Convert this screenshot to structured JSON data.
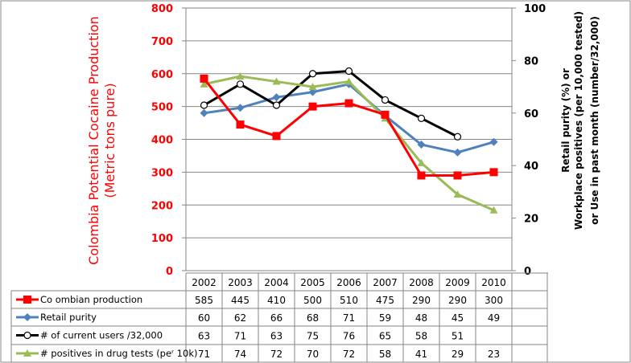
{
  "chart_data": {
    "type": "line",
    "categories": [
      "2002",
      "2003",
      "2004",
      "2005",
      "2006",
      "2007",
      "2008",
      "2009",
      "2010"
    ],
    "left_axis": {
      "title_line1": "Colombia Potential Cocaine Production",
      "title_line2": "(Metric tons pure)",
      "range": [
        0,
        800
      ],
      "ticks": [
        "0",
        "100",
        "200",
        "300",
        "400",
        "500",
        "600",
        "700",
        "800"
      ],
      "color": "#FF0000"
    },
    "right_axis": {
      "title_line1": "Retail purity (%) or",
      "title_line2": "Workplace positives (per 10,000 tested)",
      "title_line3": "or Use in past month (number/32,000)",
      "range": [
        0,
        100
      ],
      "ticks": [
        "0",
        "20",
        "40",
        "60",
        "80",
        "100"
      ]
    },
    "grid": true,
    "legend": "table-bottom",
    "series": [
      {
        "name": "Co ombian production",
        "axis": "left",
        "color": "#FF0000",
        "marker": "square",
        "values": [
          585,
          445,
          410,
          500,
          510,
          475,
          290,
          290,
          300
        ]
      },
      {
        "name": "Retail purity",
        "axis": "right",
        "color": "#4F81BD",
        "marker": "diamond",
        "values": [
          60,
          62,
          66,
          68,
          71,
          59,
          48,
          45,
          49
        ]
      },
      {
        "name": "# of current users /32,000",
        "axis": "right",
        "color": "#000000",
        "marker": "circle-open",
        "values": [
          63,
          71,
          63,
          75,
          76,
          65,
          58,
          51,
          null
        ]
      },
      {
        "name": "# positives in drug tests (peʳ 10k)",
        "axis": "right",
        "color": "#9BBB59",
        "marker": "triangle",
        "values": [
          71,
          74,
          72,
          70,
          72,
          58,
          41,
          29,
          23
        ]
      }
    ]
  }
}
